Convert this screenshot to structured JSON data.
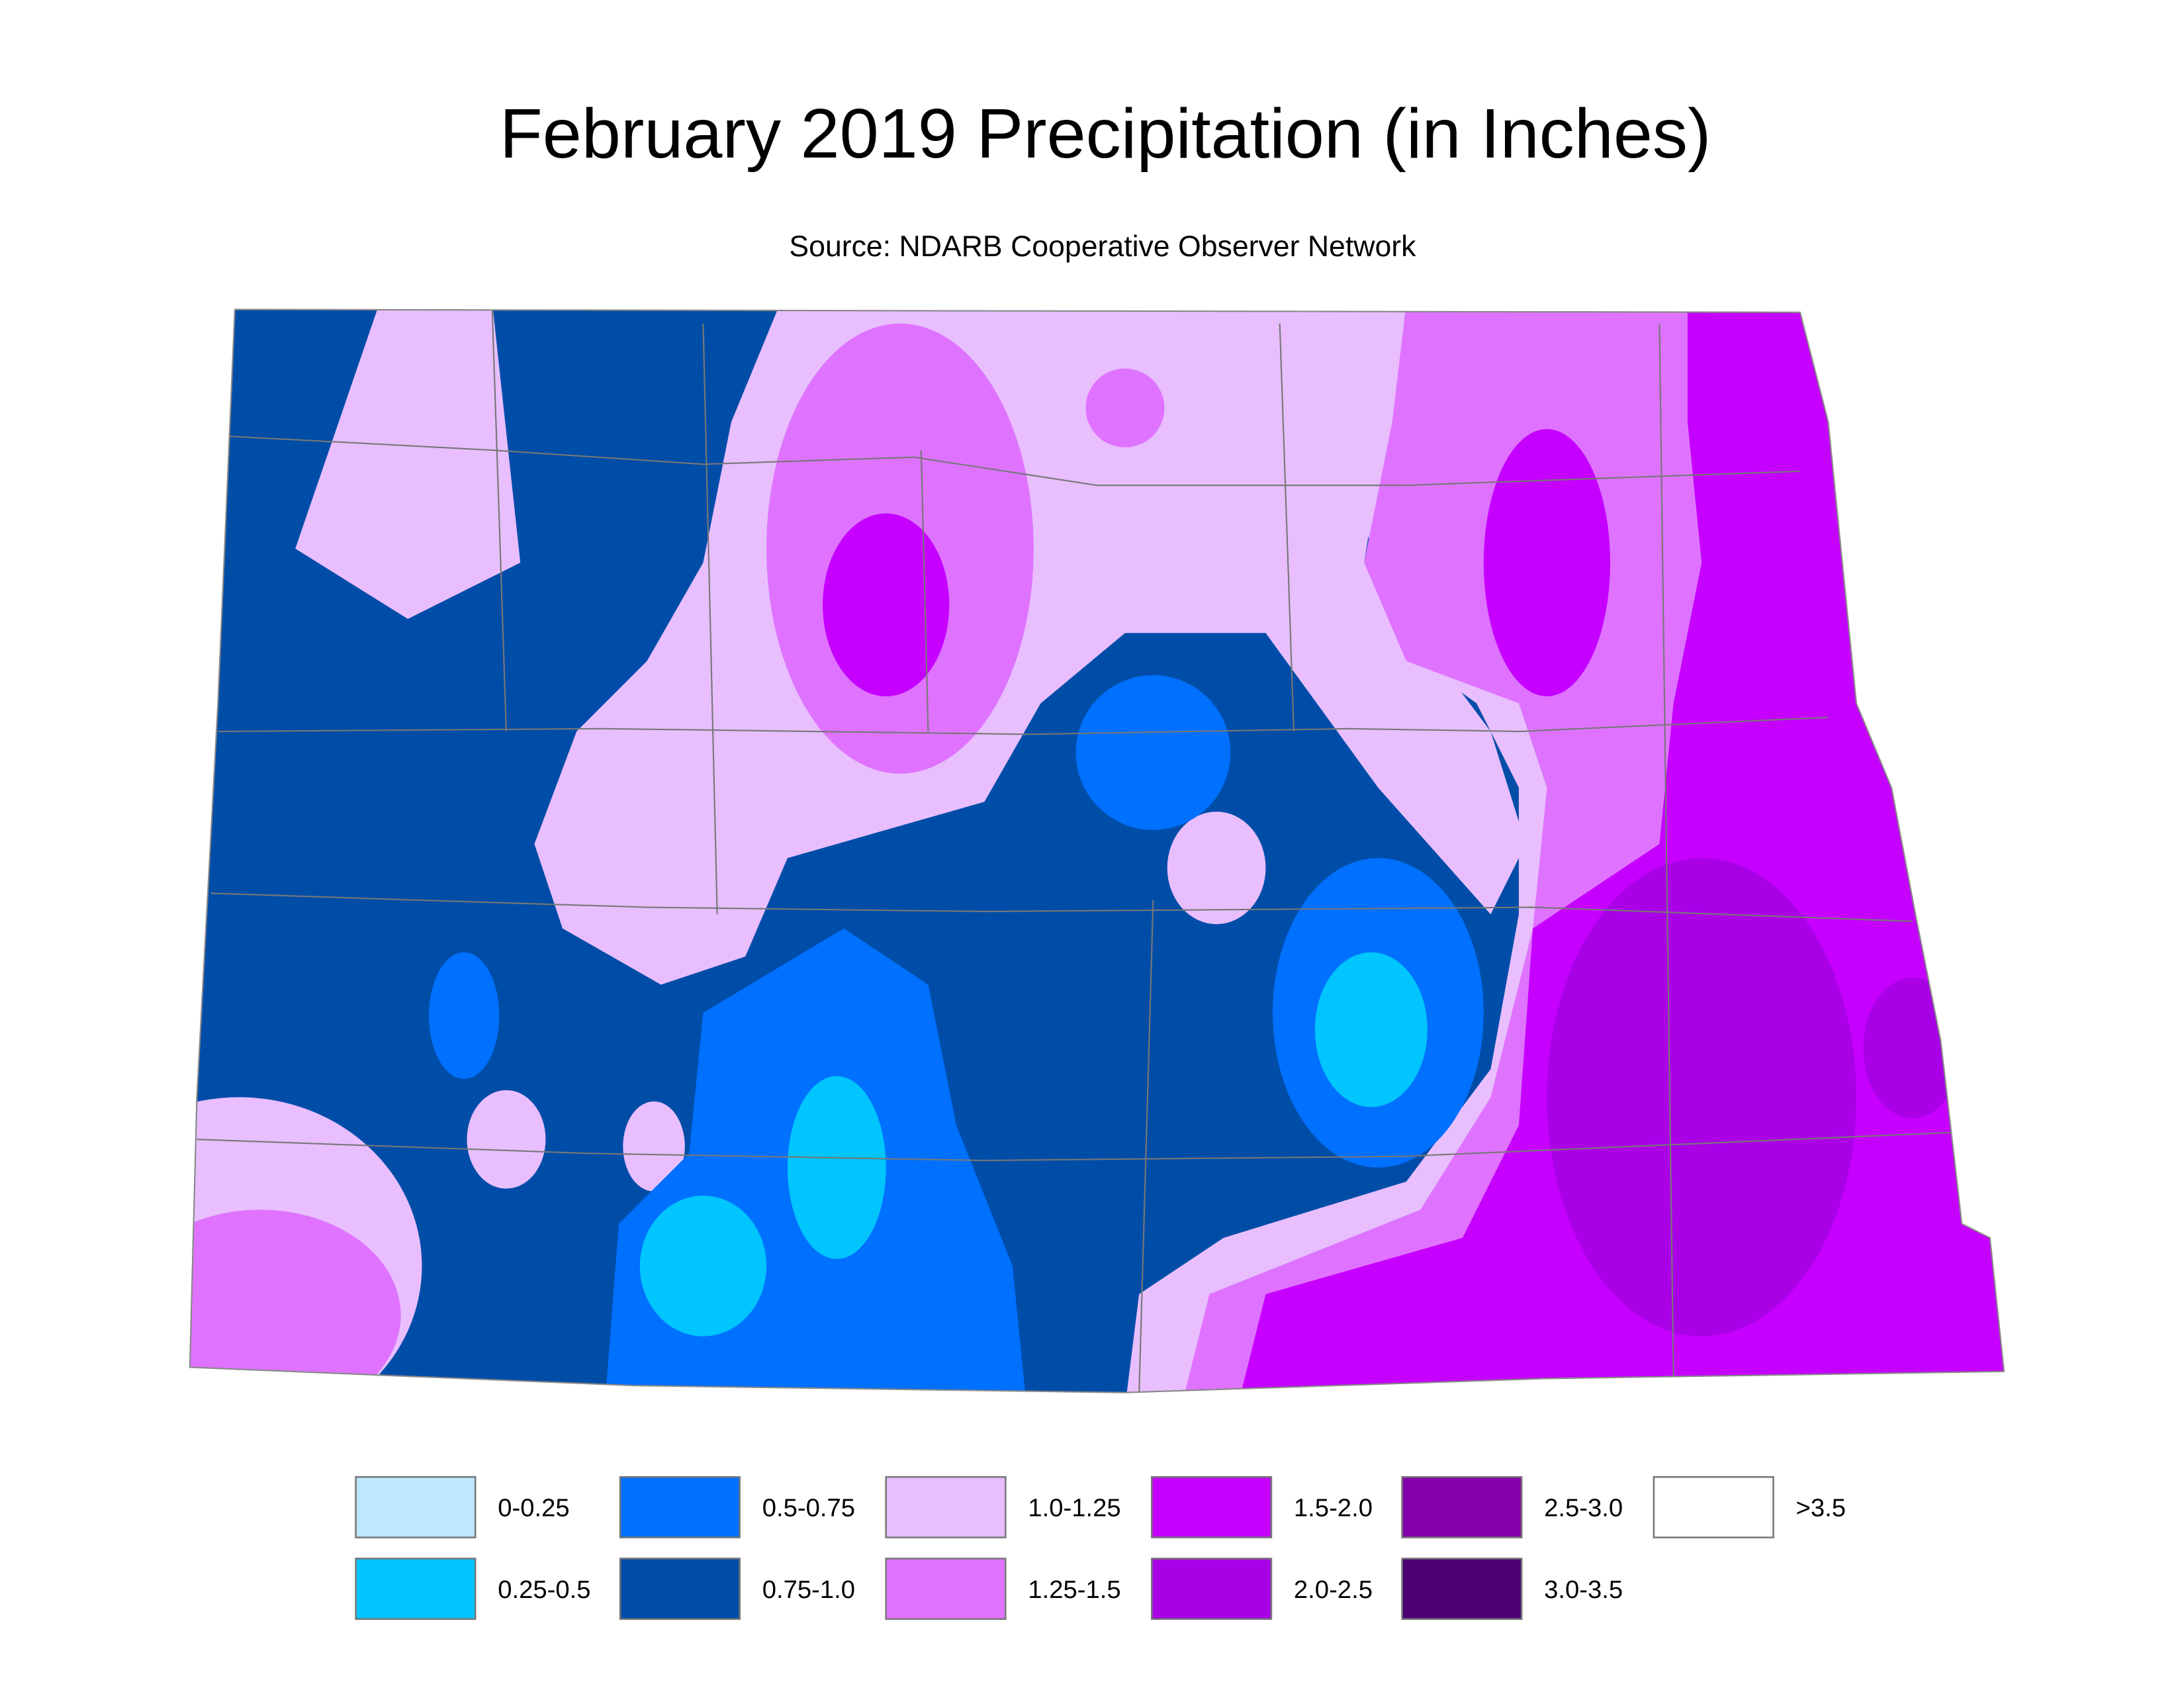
{
  "title": "February 2019 Precipitation (in Inches)",
  "subtitle": "Source: NDARB Cooperative Observer Network",
  "legend": {
    "items": [
      {
        "label": "0-0.25",
        "color": "#bee8ff"
      },
      {
        "label": "0.25-0.5",
        "color": "#00c5ff"
      },
      {
        "label": "0.5-0.75",
        "color": "#0070ff"
      },
      {
        "label": "0.75-1.0",
        "color": "#004da8"
      },
      {
        "label": "1.0-1.25",
        "color": "#e8beff"
      },
      {
        "label": "1.25-1.5",
        "color": "#df73ff"
      },
      {
        "label": "1.5-2.0",
        "color": "#c500ff"
      },
      {
        "label": "2.0-2.5",
        "color": "#a900e6"
      },
      {
        "label": "2.5-3.0",
        "color": "#8400a8"
      },
      {
        "label": "3.0-3.5",
        "color": "#4c0073"
      },
      {
        "label": ">3.5",
        "color": "#ffffff"
      }
    ]
  }
}
